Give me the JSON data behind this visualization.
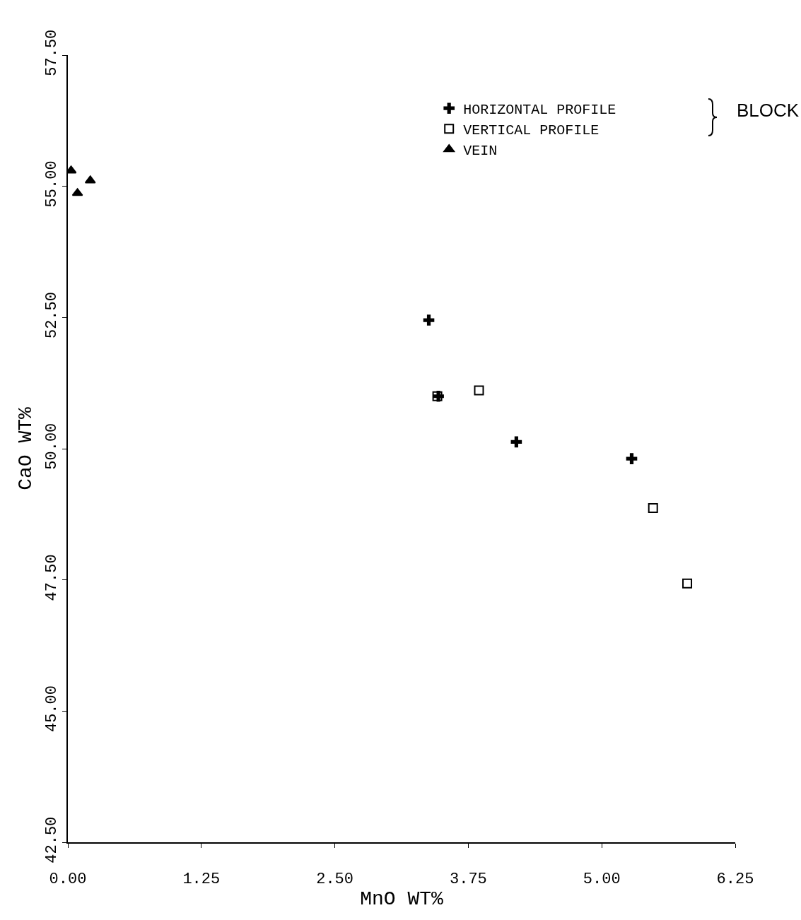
{
  "chart_data": {
    "type": "scatter",
    "xlabel": "MnO WT%",
    "ylabel": "CaO WT%",
    "xlim": [
      0,
      6.25
    ],
    "ylim": [
      42.5,
      57.5
    ],
    "xticks": [
      {
        "value": 0,
        "label": "0.00"
      },
      {
        "value": 1.25,
        "label": "1.25"
      },
      {
        "value": 2.5,
        "label": "2.50"
      },
      {
        "value": 3.75,
        "label": "3.75"
      },
      {
        "value": 5,
        "label": "5.00"
      },
      {
        "value": 6.25,
        "label": "6.25"
      }
    ],
    "yticks": [
      {
        "value": 42.5,
        "label": "42.50"
      },
      {
        "value": 45,
        "label": "45.00"
      },
      {
        "value": 47.5,
        "label": "47.50"
      },
      {
        "value": 50,
        "label": "50.00"
      },
      {
        "value": 52.5,
        "label": "52.50"
      },
      {
        "value": 55,
        "label": "55.00"
      },
      {
        "value": 57.5,
        "label": "57.50"
      }
    ],
    "grid": false,
    "legend": "top right",
    "legend_title": "BLOCK",
    "series": [
      {
        "name": "HORIZONTAL PROFILE",
        "color": "#000000",
        "marker": "cross",
        "x": [
          3.38,
          3.47,
          4.2,
          5.28
        ],
        "values": [
          52.45,
          51.0,
          50.13,
          49.81
        ]
      },
      {
        "name": "VERTICAL PROFILE",
        "color": "#000000",
        "marker": "square",
        "x": [
          3.46,
          3.85,
          5.48,
          5.8
        ],
        "values": [
          51.0,
          51.11,
          48.87,
          47.43
        ]
      },
      {
        "name": "VEIN",
        "color": "#000000",
        "marker": "triangle",
        "x": [
          0.03,
          0.09,
          0.21
        ],
        "values": [
          55.3,
          54.87,
          55.11
        ]
      }
    ]
  }
}
